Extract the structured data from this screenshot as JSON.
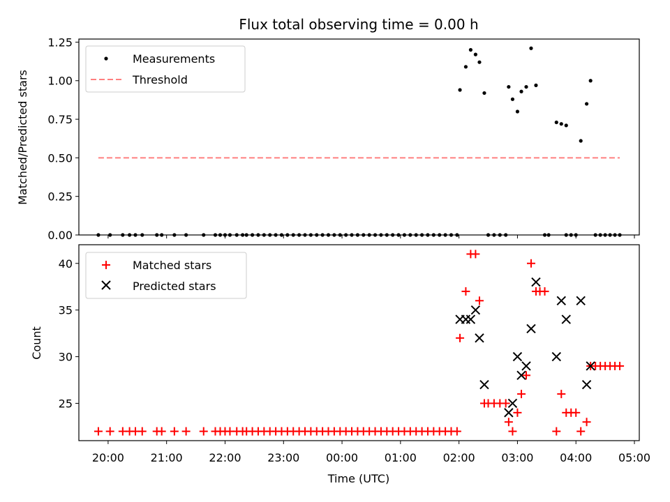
{
  "chart_data": [
    {
      "type": "scatter",
      "title": "Flux total observing time = 0.00 h",
      "xlabel": "",
      "ylabel": "Matched/Predicted stars",
      "ylim": [
        0,
        1.27
      ],
      "xlim": [
        "19:30",
        "05:05"
      ],
      "yticks": [
        "0.00",
        "0.25",
        "0.50",
        "0.75",
        "1.00",
        "1.25"
      ],
      "legend": {
        "position": "top-left",
        "entries": [
          "Measurements",
          "Threshold"
        ]
      },
      "series": [
        {
          "name": "Measurements",
          "marker": "dot",
          "color": "#000000",
          "points": [
            [
              "19:50",
              0
            ],
            [
              "20:02",
              0
            ],
            [
              "20:15",
              0
            ],
            [
              "20:22",
              0
            ],
            [
              "20:28",
              0
            ],
            [
              "20:35",
              0
            ],
            [
              "20:50",
              0
            ],
            [
              "20:55",
              0
            ],
            [
              "21:08",
              0
            ],
            [
              "21:20",
              0
            ],
            [
              "21:38",
              0
            ],
            [
              "21:50",
              0
            ],
            [
              "21:55",
              0
            ],
            [
              "22:00",
              0
            ],
            [
              "22:05",
              0
            ],
            [
              "22:12",
              0
            ],
            [
              "22:18",
              0
            ],
            [
              "22:22",
              0
            ],
            [
              "22:28",
              0
            ],
            [
              "22:34",
              0
            ],
            [
              "22:40",
              0
            ],
            [
              "22:46",
              0
            ],
            [
              "22:52",
              0
            ],
            [
              "22:58",
              0
            ],
            [
              "23:04",
              0
            ],
            [
              "23:10",
              0
            ],
            [
              "23:16",
              0
            ],
            [
              "23:22",
              0
            ],
            [
              "23:28",
              0
            ],
            [
              "23:34",
              0
            ],
            [
              "23:40",
              0
            ],
            [
              "23:46",
              0
            ],
            [
              "23:52",
              0
            ],
            [
              "23:58",
              0
            ],
            [
              "00:04",
              0
            ],
            [
              "00:10",
              0
            ],
            [
              "00:16",
              0
            ],
            [
              "00:22",
              0
            ],
            [
              "00:28",
              0
            ],
            [
              "00:34",
              0
            ],
            [
              "00:40",
              0
            ],
            [
              "00:46",
              0
            ],
            [
              "00:52",
              0
            ],
            [
              "00:58",
              0
            ],
            [
              "01:04",
              0
            ],
            [
              "01:10",
              0
            ],
            [
              "01:16",
              0
            ],
            [
              "01:22",
              0
            ],
            [
              "01:28",
              0
            ],
            [
              "01:34",
              0
            ],
            [
              "01:40",
              0
            ],
            [
              "01:46",
              0
            ],
            [
              "01:52",
              0
            ],
            [
              "01:58",
              0
            ],
            [
              "02:30",
              0
            ],
            [
              "02:36",
              0
            ],
            [
              "02:42",
              0
            ],
            [
              "02:48",
              0
            ],
            [
              "03:28",
              0
            ],
            [
              "03:32",
              0
            ],
            [
              "03:50",
              0
            ],
            [
              "03:55",
              0
            ],
            [
              "04:00",
              0
            ],
            [
              "04:20",
              0
            ],
            [
              "04:25",
              0
            ],
            [
              "04:30",
              0
            ],
            [
              "04:35",
              0
            ],
            [
              "04:40",
              0
            ],
            [
              "04:45",
              0
            ],
            [
              "02:01",
              0.94
            ],
            [
              "02:07",
              1.09
            ],
            [
              "02:12",
              1.2
            ],
            [
              "02:17",
              1.17
            ],
            [
              "02:21",
              1.12
            ],
            [
              "02:26",
              0.92
            ],
            [
              "02:51",
              0.96
            ],
            [
              "02:55",
              0.88
            ],
            [
              "03:00",
              0.8
            ],
            [
              "03:04",
              0.93
            ],
            [
              "03:09",
              0.96
            ],
            [
              "03:14",
              1.21
            ],
            [
              "03:19",
              0.97
            ],
            [
              "03:40",
              0.73
            ],
            [
              "03:45",
              0.72
            ],
            [
              "03:50",
              0.71
            ],
            [
              "04:05",
              0.61
            ],
            [
              "04:11",
              0.85
            ],
            [
              "04:15",
              1.0
            ]
          ]
        },
        {
          "name": "Threshold",
          "line": "dashed",
          "color": "#ff7f7f",
          "points": [
            [
              "19:50",
              0.5
            ],
            [
              "04:45",
              0.5
            ]
          ]
        }
      ]
    },
    {
      "type": "scatter",
      "title": "",
      "xlabel": "Time (UTC)",
      "ylabel": "Count",
      "ylim": [
        21,
        42
      ],
      "xlim": [
        "19:30",
        "05:05"
      ],
      "yticks": [
        "25",
        "30",
        "35",
        "40"
      ],
      "xticks": [
        "20:00",
        "21:00",
        "22:00",
        "23:00",
        "00:00",
        "01:00",
        "02:00",
        "03:00",
        "04:00",
        "05:00"
      ],
      "legend": {
        "position": "top-left",
        "entries": [
          "Matched stars",
          "Predicted stars"
        ]
      },
      "series": [
        {
          "name": "Matched stars",
          "marker": "plus",
          "color": "#ff0000",
          "points": [
            [
              "19:50",
              22
            ],
            [
              "20:02",
              22
            ],
            [
              "20:15",
              22
            ],
            [
              "20:22",
              22
            ],
            [
              "20:28",
              22
            ],
            [
              "20:35",
              22
            ],
            [
              "20:50",
              22
            ],
            [
              "20:55",
              22
            ],
            [
              "21:08",
              22
            ],
            [
              "21:20",
              22
            ],
            [
              "21:38",
              22
            ],
            [
              "21:50",
              22
            ],
            [
              "21:55",
              22
            ],
            [
              "22:00",
              22
            ],
            [
              "22:05",
              22
            ],
            [
              "22:12",
              22
            ],
            [
              "22:18",
              22
            ],
            [
              "22:22",
              22
            ],
            [
              "22:28",
              22
            ],
            [
              "22:34",
              22
            ],
            [
              "22:40",
              22
            ],
            [
              "22:46",
              22
            ],
            [
              "22:52",
              22
            ],
            [
              "22:58",
              22
            ],
            [
              "23:04",
              22
            ],
            [
              "23:10",
              22
            ],
            [
              "23:16",
              22
            ],
            [
              "23:22",
              22
            ],
            [
              "23:28",
              22
            ],
            [
              "23:34",
              22
            ],
            [
              "23:40",
              22
            ],
            [
              "23:46",
              22
            ],
            [
              "23:52",
              22
            ],
            [
              "23:58",
              22
            ],
            [
              "00:04",
              22
            ],
            [
              "00:10",
              22
            ],
            [
              "00:16",
              22
            ],
            [
              "00:22",
              22
            ],
            [
              "00:28",
              22
            ],
            [
              "00:34",
              22
            ],
            [
              "00:40",
              22
            ],
            [
              "00:46",
              22
            ],
            [
              "00:52",
              22
            ],
            [
              "00:58",
              22
            ],
            [
              "01:04",
              22
            ],
            [
              "01:10",
              22
            ],
            [
              "01:16",
              22
            ],
            [
              "01:22",
              22
            ],
            [
              "01:28",
              22
            ],
            [
              "01:34",
              22
            ],
            [
              "01:40",
              22
            ],
            [
              "01:46",
              22
            ],
            [
              "01:52",
              22
            ],
            [
              "01:58",
              22
            ],
            [
              "02:01",
              32
            ],
            [
              "02:07",
              37
            ],
            [
              "02:12",
              41
            ],
            [
              "02:17",
              41
            ],
            [
              "02:21",
              36
            ],
            [
              "02:26",
              25
            ],
            [
              "02:30",
              25
            ],
            [
              "02:36",
              25
            ],
            [
              "02:42",
              25
            ],
            [
              "02:48",
              25
            ],
            [
              "02:51",
              23
            ],
            [
              "02:55",
              22
            ],
            [
              "03:00",
              24
            ],
            [
              "03:04",
              26
            ],
            [
              "03:09",
              28
            ],
            [
              "03:14",
              40
            ],
            [
              "03:19",
              37
            ],
            [
              "03:23",
              37
            ],
            [
              "03:28",
              37
            ],
            [
              "03:40",
              22
            ],
            [
              "03:45",
              26
            ],
            [
              "03:50",
              24
            ],
            [
              "03:55",
              24
            ],
            [
              "04:00",
              24
            ],
            [
              "04:05",
              22
            ],
            [
              "04:11",
              23
            ],
            [
              "04:15",
              29
            ],
            [
              "04:20",
              29
            ],
            [
              "04:25",
              29
            ],
            [
              "04:30",
              29
            ],
            [
              "04:35",
              29
            ],
            [
              "04:40",
              29
            ],
            [
              "04:45",
              29
            ]
          ]
        },
        {
          "name": "Predicted stars",
          "marker": "x",
          "color": "#000000",
          "points": [
            [
              "02:01",
              34
            ],
            [
              "02:07",
              34
            ],
            [
              "02:12",
              34
            ],
            [
              "02:17",
              35
            ],
            [
              "02:21",
              32
            ],
            [
              "02:26",
              27
            ],
            [
              "02:51",
              24
            ],
            [
              "02:55",
              25
            ],
            [
              "03:00",
              30
            ],
            [
              "03:04",
              28
            ],
            [
              "03:09",
              29
            ],
            [
              "03:14",
              33
            ],
            [
              "03:19",
              38
            ],
            [
              "03:40",
              30
            ],
            [
              "03:45",
              36
            ],
            [
              "03:50",
              34
            ],
            [
              "04:05",
              36
            ],
            [
              "04:11",
              27
            ],
            [
              "04:15",
              29
            ]
          ]
        }
      ]
    }
  ]
}
